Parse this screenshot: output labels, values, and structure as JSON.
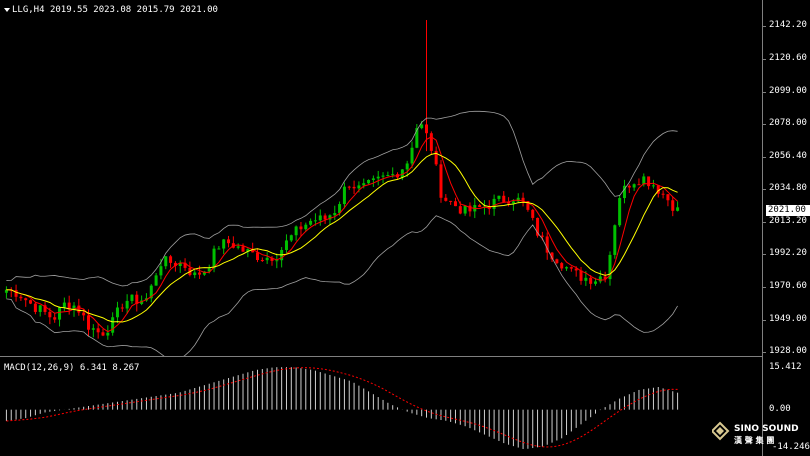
{
  "chart": {
    "symbol": "LLG,H4",
    "open": "2019.55",
    "high": "2023.08",
    "low": "2015.79",
    "close": "2021.00",
    "colors": {
      "bg": "#000000",
      "bull": "#00c000",
      "bear": "#ff0000",
      "ma_fast": "#ff0000",
      "ma_slow": "#ffff00",
      "bands": "#a0a0a0",
      "grid": "#7f7f7f"
    }
  },
  "macd": {
    "title": "MACD(12,26,9) 6.341 8.267",
    "max_label": "15.412",
    "zero_label": "0.00",
    "min_label": "-14.246",
    "min": -14.246,
    "max": 15.412
  },
  "price_axis": {
    "ticks": [
      "2142.20",
      "2120.60",
      "2099.00",
      "2078.00",
      "2056.40",
      "2034.80",
      "2013.20",
      "1992.20",
      "1970.60",
      "1949.00",
      "1928.00"
    ],
    "current": "2021.00",
    "min": 1928.0,
    "max": 2142.2
  },
  "logo": {
    "text": "SINO SOUND",
    "subtext": "漢 聲 集 團",
    "icon": "diamond-logo-icon"
  },
  "chart_data": {
    "type": "candlestick",
    "title": "LLG,H4",
    "ylim": [
      1928.0,
      2142.2
    ],
    "x_count": 140,
    "close_path": [
      1969,
      1967,
      1960,
      1955,
      1950,
      1960,
      1958,
      1945,
      1940,
      1947,
      1962,
      1962,
      1963,
      1987,
      1987,
      1986,
      1978,
      1983,
      1998,
      2000,
      1995,
      1992,
      1990,
      1992,
      2002,
      2010,
      2015,
      2015,
      2022,
      2040,
      2035,
      2038,
      2042,
      2045,
      2052,
      2080,
      2065,
      2030,
      2025,
      2020,
      2022,
      2025,
      2028,
      2030,
      2025,
      2008,
      1995,
      1988,
      1980,
      1977,
      1976,
      1980,
      2030,
      2040,
      2043,
      2038,
      2030,
      2021
    ],
    "macd_path": [
      -4,
      -3,
      -1,
      0,
      1,
      2,
      3,
      4,
      5,
      6,
      8,
      10,
      12,
      14,
      15,
      15,
      14,
      12,
      10,
      6,
      2,
      -1,
      -3,
      -4,
      -6,
      -9,
      -12,
      -14,
      -13,
      -10,
      -5,
      0,
      4,
      7,
      8,
      6
    ]
  }
}
